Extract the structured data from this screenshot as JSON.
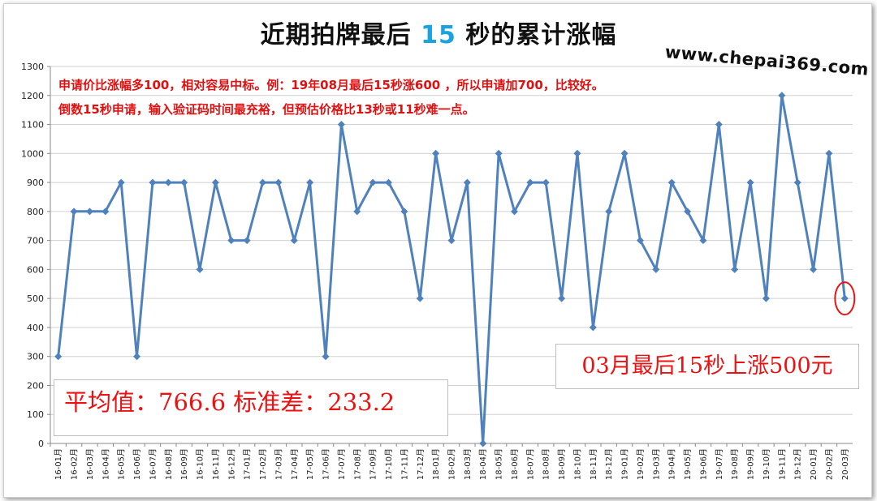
{
  "title": {
    "before": "近期拍牌最后 ",
    "highlight": "15",
    "after": " 秒的累计涨幅"
  },
  "website": "www.chepai369.com",
  "notes": {
    "line1": "申请价比涨幅多100，相对容易中标。例：19年08月最后15秒涨600 ，所以申请加700，比较好。",
    "line2": "倒数15秒申请，输入验证码时间最充裕，但预估价格比13秒或11秒难一点。"
  },
  "stats_text": "平均值：766.6 标准差：233.2",
  "last_note": "03月最后15秒上涨500元",
  "colors": {
    "line": "#4f81bd",
    "marker": "#4f81bd",
    "annotation": "#ee1111",
    "highlight": "#1aa3e0"
  },
  "chart_data": {
    "type": "line",
    "ylim": [
      0,
      1300
    ],
    "ytick_step": 100,
    "grid": "horizontal",
    "categories": [
      "16-01月",
      "16-02月",
      "16-03月",
      "16-04月",
      "16-05月",
      "16-06月",
      "16-07月",
      "16-08月",
      "16-09月",
      "16-10月",
      "16-11月",
      "16-12月",
      "17-01月",
      "17-02月",
      "17-03月",
      "17-04月",
      "17-05月",
      "17-06月",
      "17-07月",
      "17-08月",
      "17-09月",
      "17-10月",
      "17-11月",
      "17-12月",
      "18-01月",
      "18-02月",
      "18-03月",
      "18-04月",
      "18-05月",
      "18-06月",
      "18-07月",
      "18-08月",
      "18-09月",
      "18-10月",
      "18-11月",
      "18-12月",
      "19-01月",
      "19-02月",
      "19-03月",
      "19-04月",
      "19-05月",
      "19-06月",
      "19-07月",
      "19-08月",
      "19-09月",
      "19-10月",
      "19-11月",
      "19-12月",
      "20-01月",
      "20-02月",
      "20-03月"
    ],
    "values": [
      300,
      800,
      800,
      800,
      900,
      300,
      900,
      900,
      900,
      600,
      900,
      700,
      700,
      900,
      900,
      700,
      900,
      300,
      1100,
      800,
      900,
      900,
      800,
      500,
      1000,
      700,
      900,
      0,
      1000,
      800,
      900,
      900,
      500,
      1000,
      400,
      800,
      1000,
      700,
      600,
      900,
      800,
      700,
      1100,
      600,
      900,
      500,
      1200,
      900,
      600,
      1000,
      500
    ],
    "highlighted_point": "20-03月"
  }
}
